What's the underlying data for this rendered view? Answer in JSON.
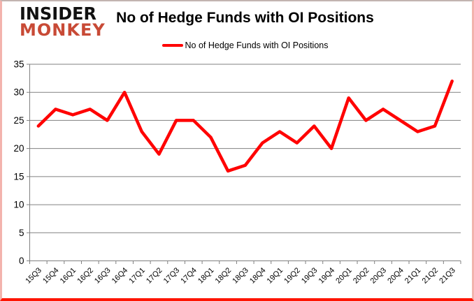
{
  "logo": {
    "line1": "INSIDER",
    "line2": "MONKEY"
  },
  "header": {
    "title": "No of Hedge Funds with OI Positions"
  },
  "chart_data": {
    "type": "line",
    "title": "No of Hedge Funds with OI Positions",
    "categories": [
      "15Q3",
      "15Q4",
      "16Q1",
      "16Q2",
      "16Q3",
      "16Q4",
      "17Q1",
      "17Q2",
      "17Q3",
      "17Q4",
      "18Q1",
      "18Q2",
      "18Q3",
      "18Q4",
      "19Q1",
      "19Q2",
      "19Q3",
      "19Q4",
      "20Q1",
      "20Q2",
      "20Q3",
      "20Q4",
      "21Q1",
      "21Q2",
      "21Q3"
    ],
    "series": [
      {
        "name": "No of Hedge Funds with OI Positions",
        "color": "#ff0000",
        "values": [
          24,
          27,
          26,
          27,
          25,
          30,
          23,
          19,
          25,
          25,
          22,
          16,
          17,
          21,
          23,
          21,
          24,
          20,
          29,
          25,
          27,
          25,
          23,
          24,
          32
        ]
      }
    ],
    "xlabel": "",
    "ylabel": "",
    "ylim": [
      0,
      35
    ],
    "yticks": [
      0,
      5,
      10,
      15,
      20,
      25,
      30,
      35
    ],
    "grid": true,
    "legend_position": "top-center"
  },
  "colors": {
    "line": "#ff0000",
    "grid": "#808080",
    "axis": "#808080",
    "tick_text": "#000000",
    "logo_black": "#111111",
    "logo_red": "#c84a36",
    "border_side": "#f3b3ad",
    "border_bottom": "#fe1400"
  }
}
